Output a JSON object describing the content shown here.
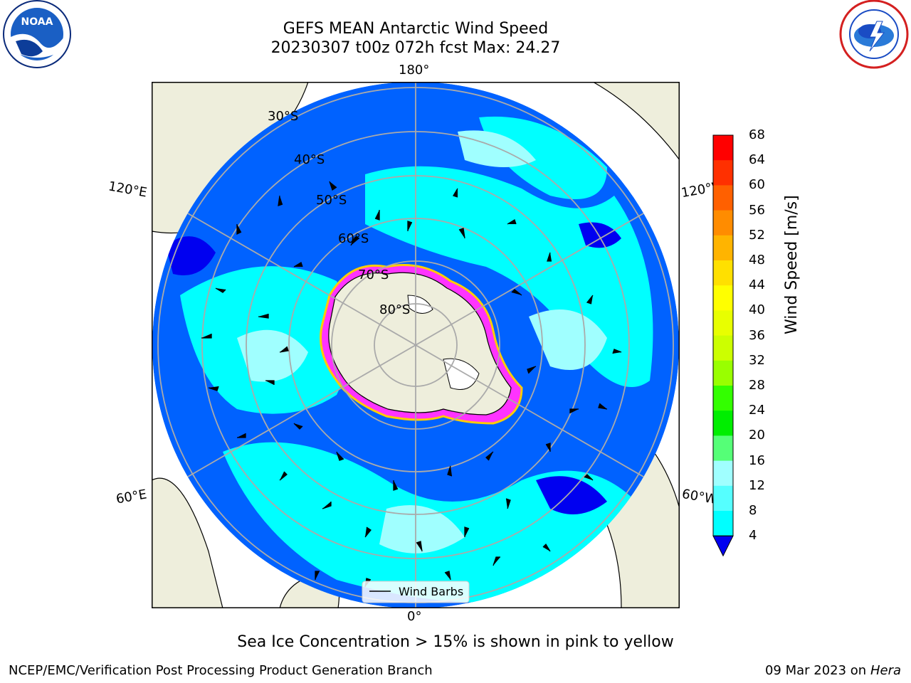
{
  "title": {
    "line1": "GEFS MEAN Antarctic Wind Speed",
    "line2": "20230307 t00z 072h fcst   Max: 24.27"
  },
  "logos": {
    "left": "noaa-logo",
    "right": "nws-logo"
  },
  "map": {
    "projection": "south-polar-stereographic",
    "lon_labels": {
      "top": "180°",
      "bottom": "0°",
      "upper_left": "120°E",
      "upper_right": "120°W",
      "lower_left": "60°E",
      "lower_right": "60°W"
    },
    "lat_labels": [
      "30°S",
      "40°S",
      "50°S",
      "60°S",
      "70°S",
      "80°S"
    ],
    "legend": "Wind Barbs",
    "colors": {
      "land": "#eeeedc",
      "ocean_low": "#0062ff",
      "ocean_deep": "#0000f0",
      "ocean_mid": "#00ffff",
      "ocean_light": "#a0ffff",
      "ice": "#ff33ff",
      "ice_edge": "#ffcc00"
    }
  },
  "colorbar": {
    "label": "Wind Speed [m/s]",
    "ticks": [
      "68",
      "64",
      "60",
      "56",
      "52",
      "48",
      "44",
      "40",
      "36",
      "32",
      "28",
      "24",
      "20",
      "16",
      "12",
      "8",
      "4"
    ],
    "colors": [
      "#ff0000",
      "#ff3000",
      "#ff6000",
      "#ff8c00",
      "#ffb400",
      "#ffe000",
      "#ffff00",
      "#e8ff00",
      "#ccff00",
      "#99ff00",
      "#33ff00",
      "#00ee00",
      "#55ff77",
      "#a0ffff",
      "#55ffff",
      "#00ffff",
      "#0080ff"
    ],
    "under_color": "#0000f0"
  },
  "note": "Sea Ice Concentration > 15% is shown in pink to yellow",
  "footer": {
    "left": "NCEP/EMC/Verification Post Processing Product Generation Branch",
    "date": "09 Mar 2023 on",
    "host": "Hera"
  }
}
